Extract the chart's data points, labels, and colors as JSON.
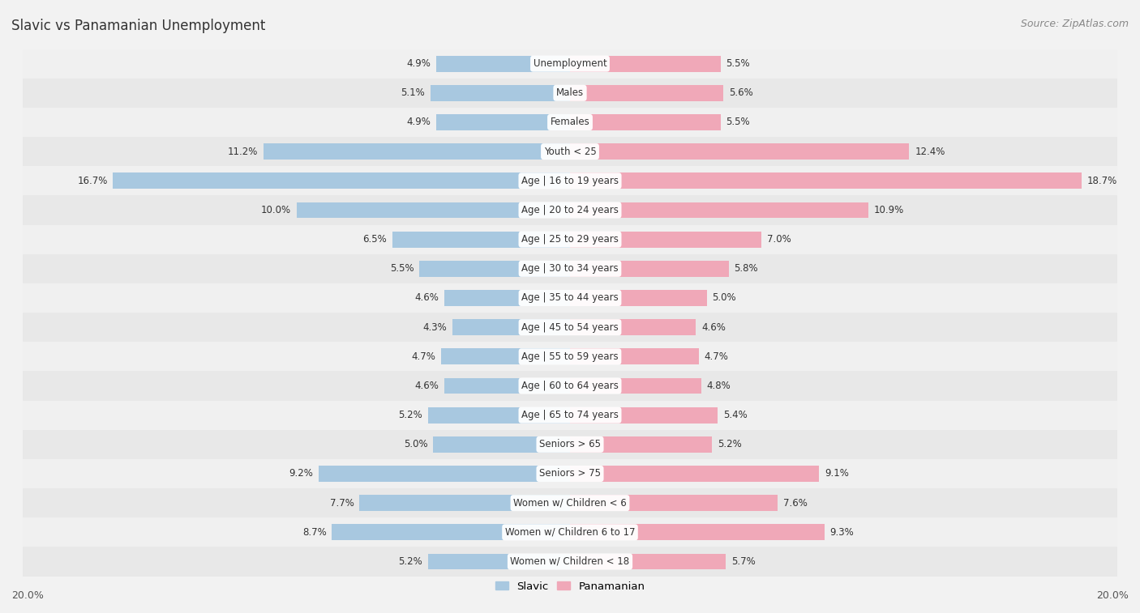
{
  "title": "Slavic vs Panamanian Unemployment",
  "source": "Source: ZipAtlas.com",
  "categories": [
    "Unemployment",
    "Males",
    "Females",
    "Youth < 25",
    "Age | 16 to 19 years",
    "Age | 20 to 24 years",
    "Age | 25 to 29 years",
    "Age | 30 to 34 years",
    "Age | 35 to 44 years",
    "Age | 45 to 54 years",
    "Age | 55 to 59 years",
    "Age | 60 to 64 years",
    "Age | 65 to 74 years",
    "Seniors > 65",
    "Seniors > 75",
    "Women w/ Children < 6",
    "Women w/ Children 6 to 17",
    "Women w/ Children < 18"
  ],
  "slavic": [
    4.9,
    5.1,
    4.9,
    11.2,
    16.7,
    10.0,
    6.5,
    5.5,
    4.6,
    4.3,
    4.7,
    4.6,
    5.2,
    5.0,
    9.2,
    7.7,
    8.7,
    5.2
  ],
  "panamanian": [
    5.5,
    5.6,
    5.5,
    12.4,
    18.7,
    10.9,
    7.0,
    5.8,
    5.0,
    4.6,
    4.7,
    4.8,
    5.4,
    5.2,
    9.1,
    7.6,
    9.3,
    5.7
  ],
  "slavic_color": "#a8c8e0",
  "panamanian_color": "#f0a8b8",
  "bar_height": 0.55,
  "xlim": 20.0,
  "row_bg_colors": [
    "#f0f0f0",
    "#e8e8e8"
  ],
  "label_fontsize": 8.5,
  "value_fontsize": 8.5,
  "title_fontsize": 12,
  "source_fontsize": 9
}
